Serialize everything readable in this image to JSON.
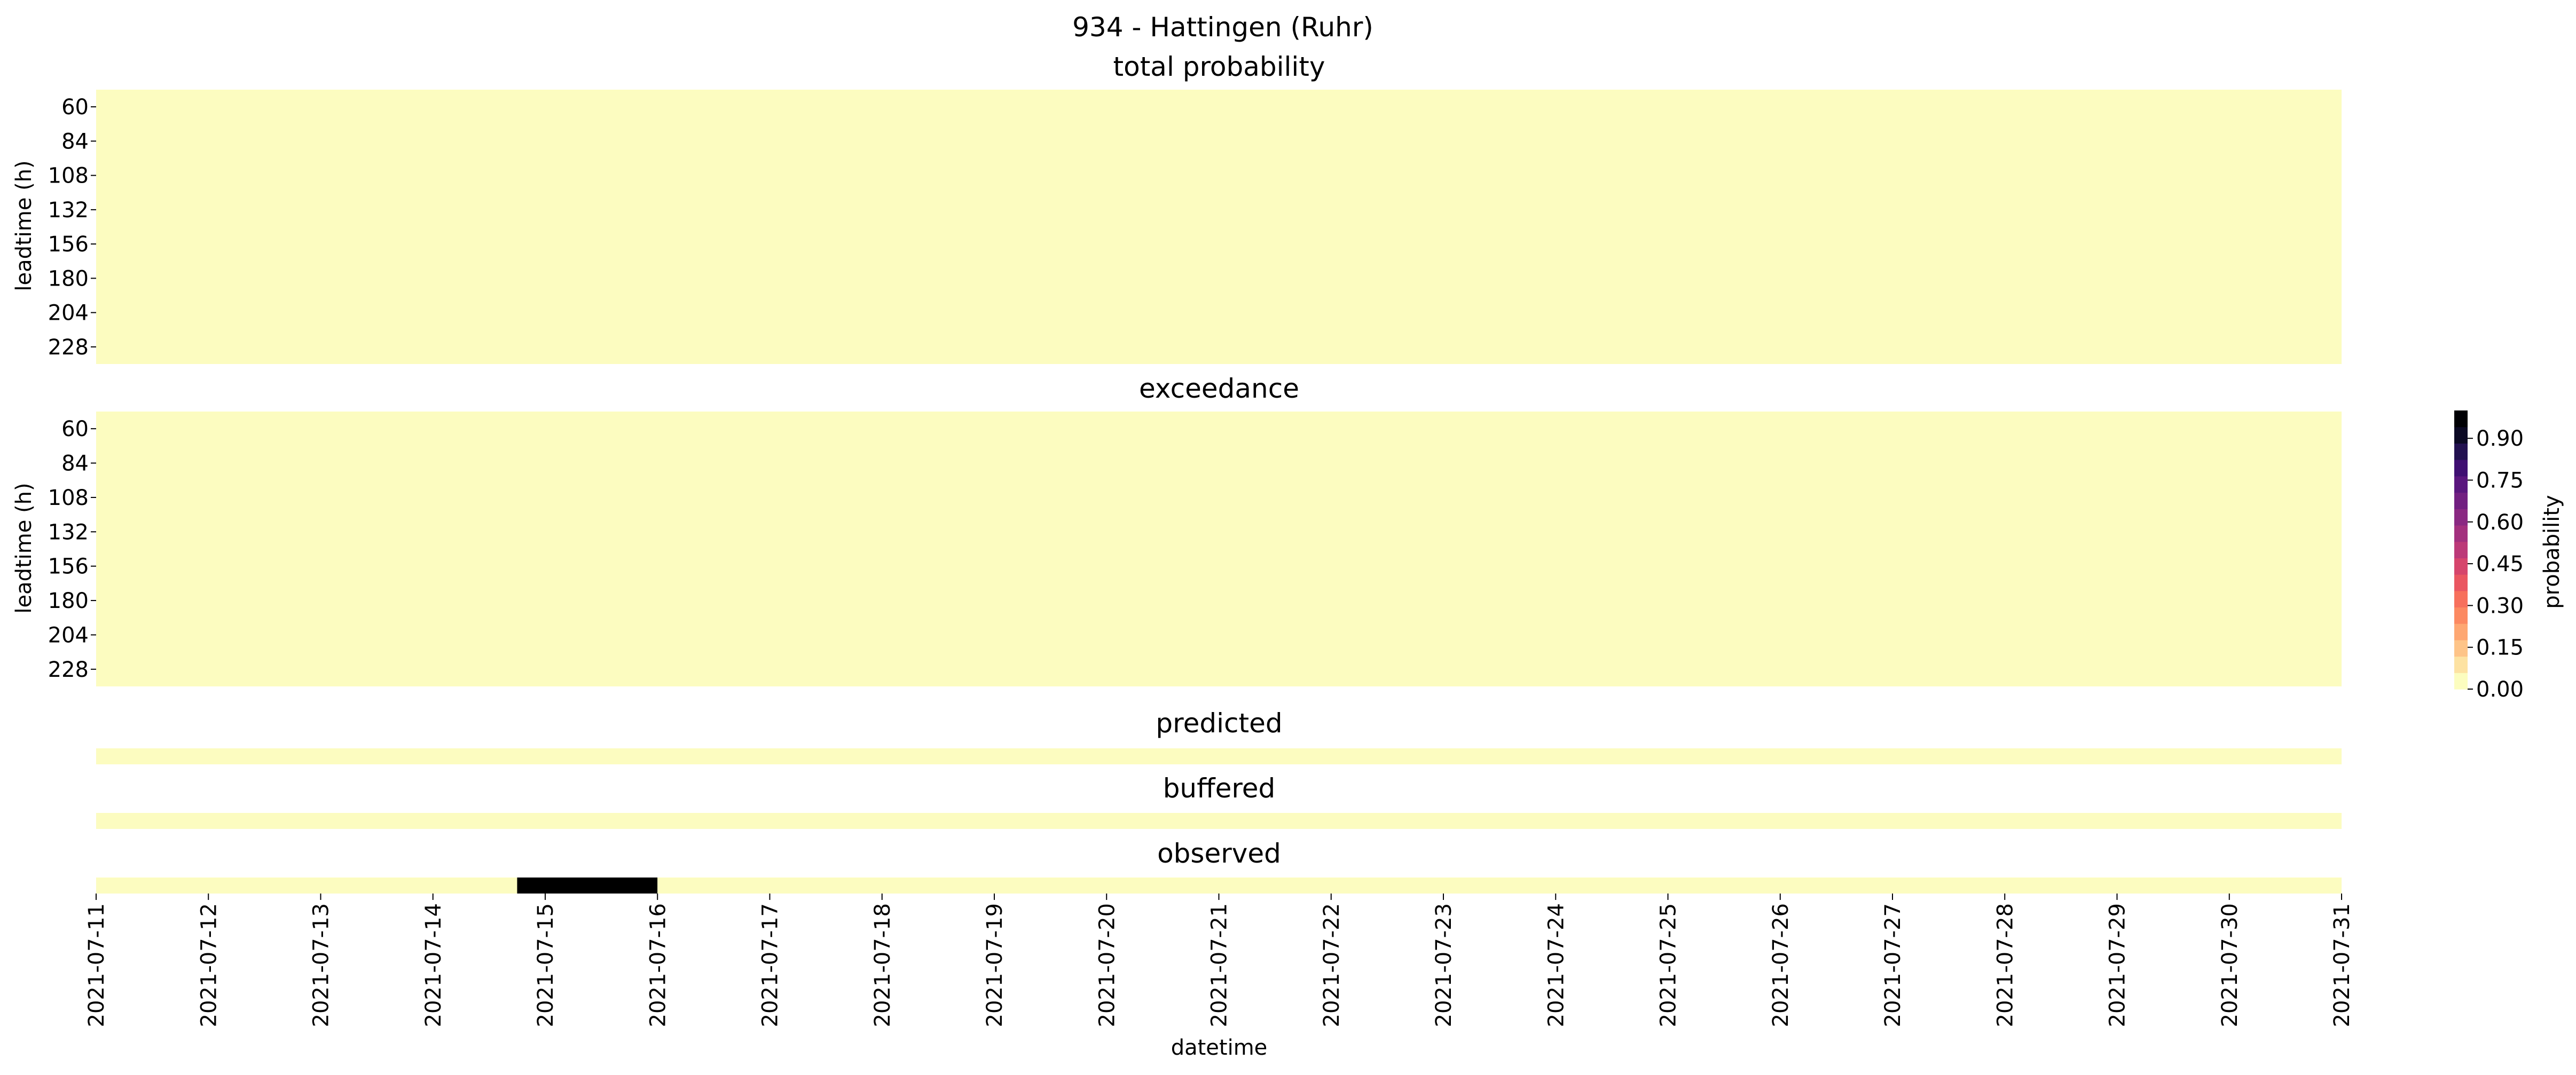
{
  "figure": {
    "title": "934 - Hattingen (Ruhr)"
  },
  "chart_data": [
    {
      "type": "heatmap",
      "title": "total probability",
      "ylabel": "leadtime (h)",
      "xlabel": "",
      "y_ticks": [
        "60",
        "84",
        "108",
        "132",
        "156",
        "180",
        "204",
        "228"
      ],
      "x_range": [
        "2021-07-11",
        "2021-07-31"
      ],
      "values_note_uniform": 0.0,
      "cells": [
        {
          "x_start": "2021-07-11T00:00",
          "x_end": "2021-07-31T00:00",
          "value": 0.0
        }
      ]
    },
    {
      "type": "heatmap",
      "title": "exceedance",
      "ylabel": "leadtime (h)",
      "xlabel": "",
      "y_ticks": [
        "60",
        "84",
        "108",
        "132",
        "156",
        "180",
        "204",
        "228"
      ],
      "x_range": [
        "2021-07-11",
        "2021-07-31"
      ],
      "cells": [
        {
          "x_start": "2021-07-11T00:00",
          "x_end": "2021-07-31T00:00",
          "value": 0.0
        }
      ]
    },
    {
      "type": "heatmap",
      "title": "predicted",
      "x_range": [
        "2021-07-11",
        "2021-07-31"
      ],
      "cells": [
        {
          "x_start": "2021-07-11T00:00",
          "x_end": "2021-07-31T00:00",
          "value": 0.0
        }
      ]
    },
    {
      "type": "heatmap",
      "title": "buffered",
      "x_range": [
        "2021-07-11",
        "2021-07-31"
      ],
      "cells": [
        {
          "x_start": "2021-07-11T00:00",
          "x_end": "2021-07-31T00:00",
          "value": 0.0
        }
      ]
    },
    {
      "type": "heatmap",
      "title": "observed",
      "xlabel": "datetime",
      "x_ticks": [
        "2021-07-11",
        "2021-07-12",
        "2021-07-13",
        "2021-07-14",
        "2021-07-15",
        "2021-07-16",
        "2021-07-17",
        "2021-07-18",
        "2021-07-19",
        "2021-07-20",
        "2021-07-21",
        "2021-07-22",
        "2021-07-23",
        "2021-07-24",
        "2021-07-25",
        "2021-07-26",
        "2021-07-27",
        "2021-07-28",
        "2021-07-29",
        "2021-07-30",
        "2021-07-31"
      ],
      "x_range": [
        "2021-07-11",
        "2021-07-31"
      ],
      "cells": [
        {
          "x_start": "2021-07-11T00:00",
          "x_end": "2021-07-14T18:00",
          "value": 0.0
        },
        {
          "x_start": "2021-07-14T18:00",
          "x_end": "2021-07-16T00:00",
          "value": 1.0
        },
        {
          "x_start": "2021-07-16T00:00",
          "x_end": "2021-07-31T00:00",
          "value": 0.0
        }
      ]
    }
  ],
  "colorbar": {
    "label": "probability",
    "ticks": [
      "0.00",
      "0.15",
      "0.30",
      "0.45",
      "0.60",
      "0.75",
      "0.90"
    ],
    "range": [
      0.0,
      1.0
    ],
    "colormap": "magma_r",
    "colors": [
      "#fcfdbf",
      "#fde2a2",
      "#fec488",
      "#fea772",
      "#fc8961",
      "#f7705c",
      "#ea5661",
      "#d6456c",
      "#bc3978",
      "#a3307e",
      "#8a2882",
      "#721f81",
      "#5a167e",
      "#3f0f72",
      "#221150",
      "#0b0924",
      "#000004"
    ],
    "zero_color": "#fcfcc0",
    "max_color": "#000000"
  }
}
